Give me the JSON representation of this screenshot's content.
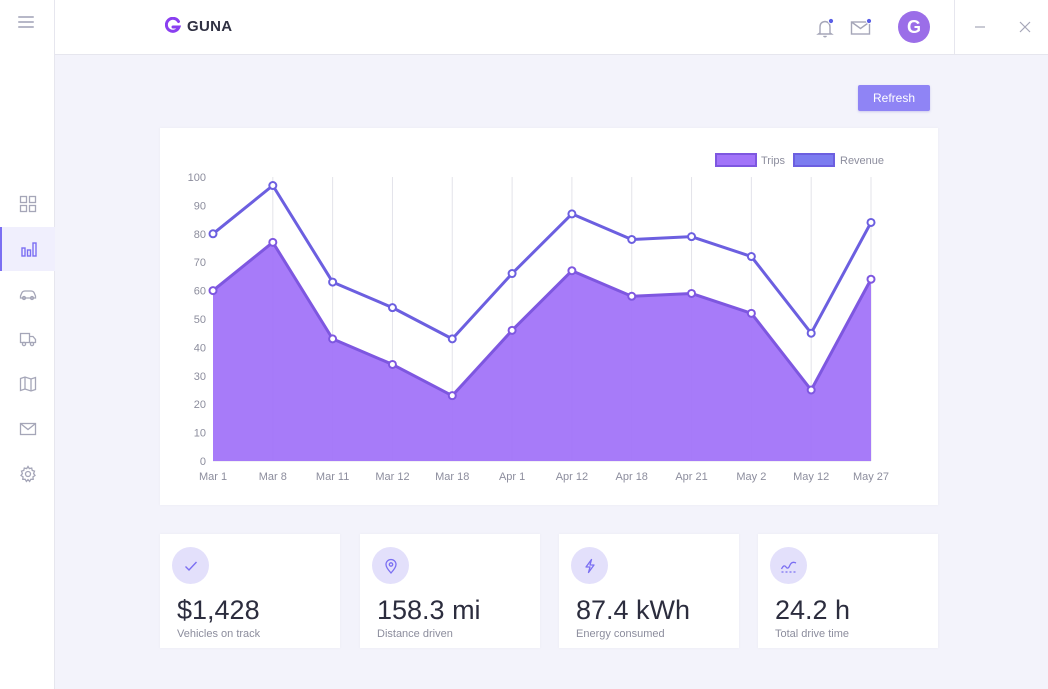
{
  "app": {
    "name": "GUNA",
    "avatar_initial": "G"
  },
  "header": {
    "refresh_label": "Refresh"
  },
  "sidebar": {
    "items": [
      {
        "icon": "dashboard-icon",
        "active": false
      },
      {
        "icon": "bar-chart-icon",
        "active": true
      },
      {
        "icon": "car-icon",
        "active": false
      },
      {
        "icon": "truck-icon",
        "active": false
      },
      {
        "icon": "map-icon",
        "active": false
      },
      {
        "icon": "mail-icon",
        "active": false
      },
      {
        "icon": "settings-icon",
        "active": false
      }
    ]
  },
  "colors": {
    "accent": "#7b6ff2",
    "trips_fill": "#a274f9",
    "trips_stroke": "#7e57e0",
    "revenue_stroke": "#6c5fe0",
    "avatar": "#9b6ee8"
  },
  "chart_data": {
    "type": "area",
    "categories": [
      "Mar 1",
      "Mar 8",
      "Mar 11",
      "Mar 12",
      "Mar 18",
      "Apr 1",
      "Apr 12",
      "Apr 18",
      "Apr 21",
      "May 2",
      "May 12",
      "May 27"
    ],
    "series": [
      {
        "name": "Trips",
        "values": [
          60,
          77,
          43,
          34,
          23,
          46,
          67,
          58,
          59,
          52,
          25,
          64
        ]
      },
      {
        "name": "Revenue",
        "values": [
          80,
          97,
          63,
          54,
          43,
          66,
          87,
          78,
          79,
          72,
          45,
          84
        ]
      }
    ],
    "ylim": [
      0,
      100
    ],
    "yticks": [
      "0",
      "10",
      "20",
      "30",
      "40",
      "50",
      "60",
      "70",
      "80",
      "90",
      "100"
    ],
    "grid": "vertical",
    "legend": "top-right"
  },
  "stats": [
    {
      "value": "$1,428",
      "label": "Vehicles on track",
      "icon": "check-icon"
    },
    {
      "value": "158.3 mi",
      "label": "Distance driven",
      "icon": "location-pin-icon"
    },
    {
      "value": "87.4 kWh",
      "label": "Energy consumed",
      "icon": "lightning-icon"
    },
    {
      "value": "24.2 h",
      "label": "Total drive time",
      "icon": "activity-icon"
    }
  ]
}
